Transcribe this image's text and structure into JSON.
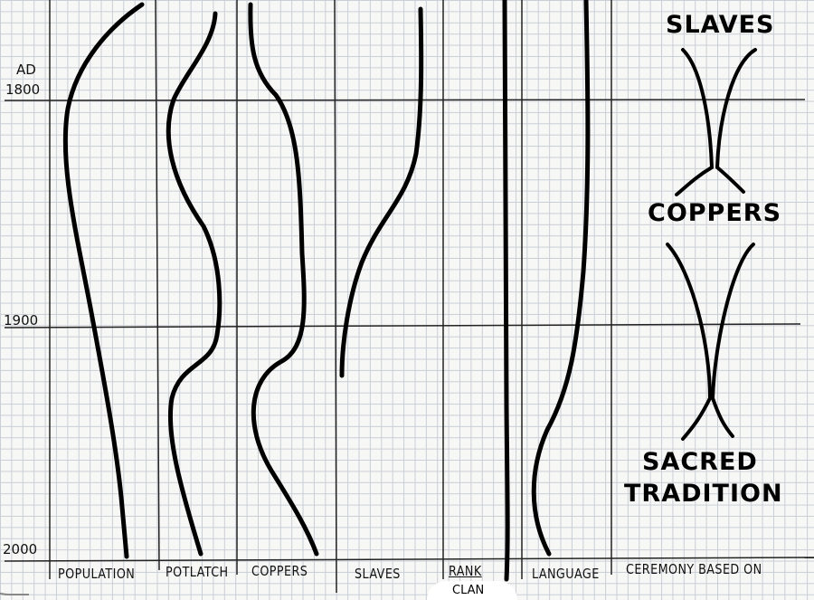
{
  "y_axis": {
    "prefix": "AD",
    "ticks": [
      "1800",
      "1900",
      "2000"
    ]
  },
  "columns": [
    "POPULATION",
    "POTLATCH",
    "COPPERS",
    "SLAVES",
    "RANK",
    "LANGUAGE",
    "CEREMONY BASED ON"
  ],
  "rank_note": "CLAN",
  "ceremony_diagram": {
    "top": "SLAVES",
    "middle": "COPPERS",
    "bottom_line1": "SACRED",
    "bottom_line2": "TRADITION"
  },
  "ink_color": "#111111",
  "grid_color": "#c9ced6"
}
